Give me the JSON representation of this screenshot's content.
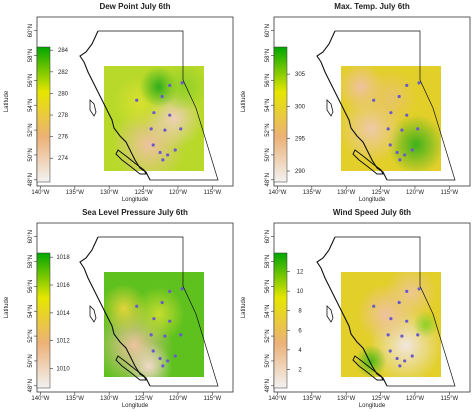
{
  "map": {
    "xlabel": "Longitude",
    "ylabel": "Latitude",
    "xlim": [
      -140.5,
      -112
    ],
    "ylim": [
      47.5,
      61.1
    ],
    "xticks": [
      {
        "value": -140,
        "label": "140°W"
      },
      {
        "value": -135,
        "label": "135°W"
      },
      {
        "value": -130,
        "label": "130°W"
      },
      {
        "value": -125,
        "label": "125°W"
      },
      {
        "value": -120,
        "label": "120°W"
      },
      {
        "value": -115,
        "label": "115°W"
      }
    ],
    "yticks": [
      {
        "value": 48,
        "label": "48°N"
      },
      {
        "value": 50,
        "label": "50°N"
      },
      {
        "value": 52,
        "label": "52°N"
      },
      {
        "value": 54,
        "label": "54°N"
      },
      {
        "value": 56,
        "label": "56°N"
      },
      {
        "value": 58,
        "label": "58°N"
      },
      {
        "value": 60,
        "label": "60°N"
      }
    ],
    "colorbar_colors": [
      "#00a600",
      "#e6e600",
      "#ecb176",
      "#f2f2f2"
    ],
    "station_color": "#6a5acd",
    "stations": {
      "lon": [
        -121.2,
        -119.4,
        -126.0,
        -122.3,
        -123.5,
        -121.2,
        -119.6,
        -121.9,
        -123.9,
        -123.6,
        -122.6,
        -120.4,
        -121.5,
        -122.2
      ],
      "lat": [
        55.6,
        55.8,
        54.4,
        54.7,
        53.4,
        53.2,
        52.1,
        52.0,
        52.1,
        50.8,
        50.2,
        50.4,
        50.0,
        49.6
      ]
    }
  },
  "panels": [
    {
      "title": "Dew Point July 6th",
      "colorbar": {
        "lim": [
          271.8,
          284.3
        ],
        "ticks": [
          274,
          276,
          278,
          280,
          282,
          284
        ]
      }
    },
    {
      "title": "Max. Temp. July 6th",
      "colorbar": {
        "lim": [
          288.3,
          309.2
        ],
        "ticks": [
          290,
          295,
          300,
          305
        ]
      }
    },
    {
      "title": "Sea Level Pressure July 6th",
      "colorbar": {
        "lim": [
          1008.6,
          1018.3
        ],
        "ticks": [
          1010,
          1012,
          1014,
          1016,
          1018
        ]
      }
    },
    {
      "title": "Wind Speed July 6th",
      "colorbar": {
        "lim": [
          0.1,
          13.9
        ],
        "ticks": [
          2,
          4,
          6,
          8,
          10,
          12
        ]
      }
    }
  ]
}
